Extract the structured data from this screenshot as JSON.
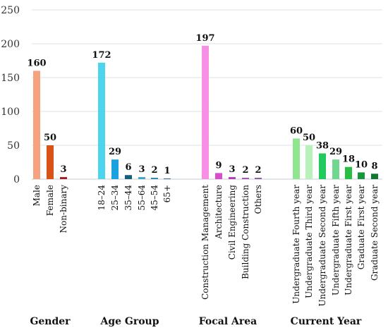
{
  "chart_data": {
    "type": "bar",
    "ylim": [
      0,
      250
    ],
    "yticks": [
      0,
      50,
      100,
      150,
      200,
      250
    ],
    "grid": true,
    "groups": [
      {
        "name": "Gender",
        "categories": [
          "Male",
          "Female",
          "Non-binary"
        ],
        "values": [
          160,
          50,
          3
        ],
        "colors": [
          "#f7a27f",
          "#d95319",
          "#a61b1b"
        ]
      },
      {
        "name": "Age Group",
        "categories": [
          "18–24",
          "25–34",
          "35–44",
          "55–64",
          "45–54",
          "65+"
        ],
        "values": [
          172,
          29,
          6,
          3,
          2,
          1
        ],
        "colors": [
          "#4dd4ef",
          "#1ba1df",
          "#145f7a",
          "#3da6c7",
          "#2f86ae",
          "#2a6f9f"
        ]
      },
      {
        "name": "Focal Area",
        "categories": [
          "Construction Management",
          "Architecture",
          "Civil Engineering",
          "Building Construction",
          "Others"
        ],
        "values": [
          197,
          9,
          3,
          2,
          2
        ],
        "colors": [
          "#f78fe6",
          "#d84ccf",
          "#b33bb8",
          "#a64eb0",
          "#8d5aa5"
        ]
      },
      {
        "name": "Current Year",
        "categories": [
          "Undergraduate Fourth year",
          "Undergraduate Third year",
          "Undergraduate Second year",
          "Undergraduate  Fifth year",
          "Undergraduate First year",
          "Graduate First year",
          "Graduate Second year"
        ],
        "values": [
          60,
          50,
          38,
          29,
          18,
          10,
          8
        ],
        "colors": [
          "#8ee68f",
          "#b7f2ba",
          "#22c95c",
          "#6fd88e",
          "#26bf3f",
          "#16963a",
          "#0f7a2f"
        ]
      }
    ]
  }
}
